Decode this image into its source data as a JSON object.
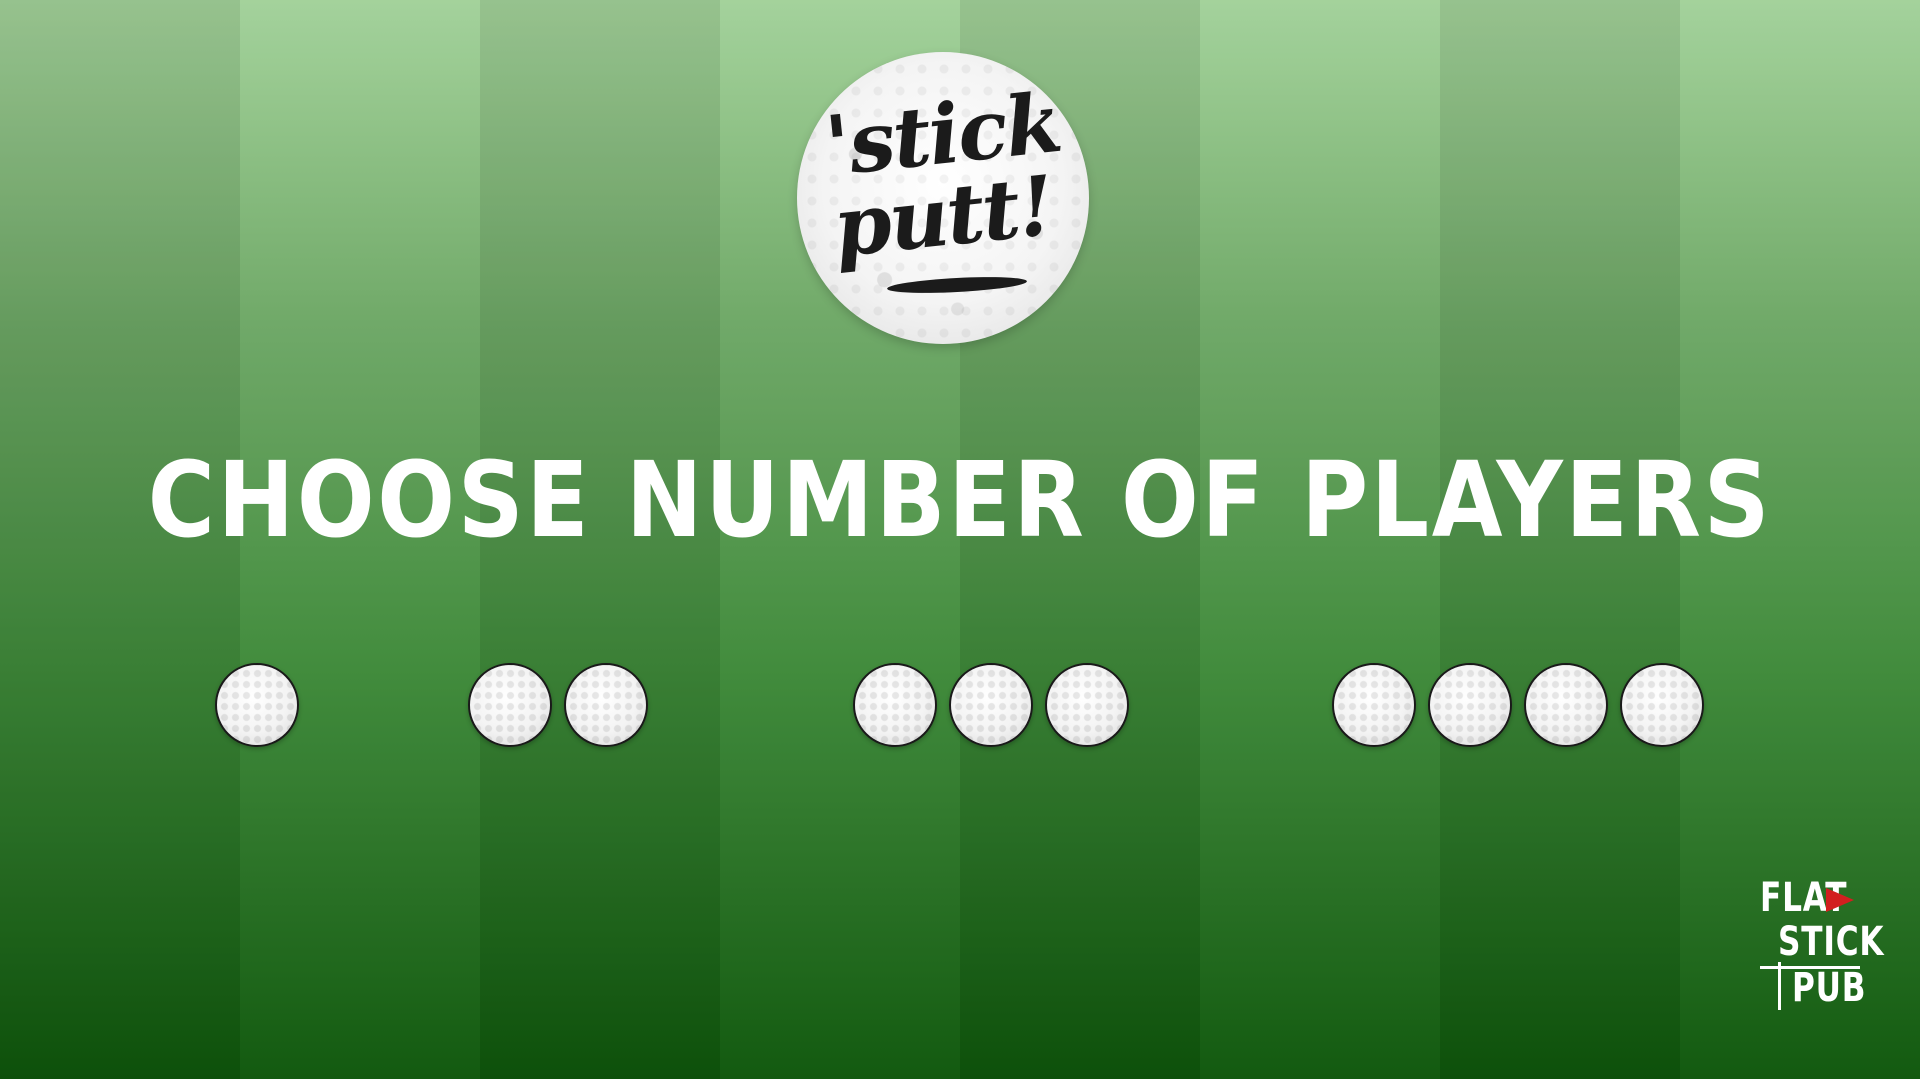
{
  "logo": {
    "line1": "'stick",
    "line2": "putt!"
  },
  "title": "CHOOSE NUMBER OF PLAYERS",
  "player_options": [
    {
      "players": 1
    },
    {
      "players": 2
    },
    {
      "players": 3
    },
    {
      "players": 4
    }
  ],
  "brand": {
    "line1": "FLAT",
    "line2": "STICK",
    "line3": "PUB"
  },
  "colors": {
    "background_top": "#a3d29a",
    "background_bottom": "#0f570c",
    "title": "#ffffff",
    "flag": "#d21f1f",
    "logo_text": "#1b1b1b"
  },
  "icons": {
    "player_option": "golf-ball-icon",
    "brand_flag": "flag-icon"
  }
}
